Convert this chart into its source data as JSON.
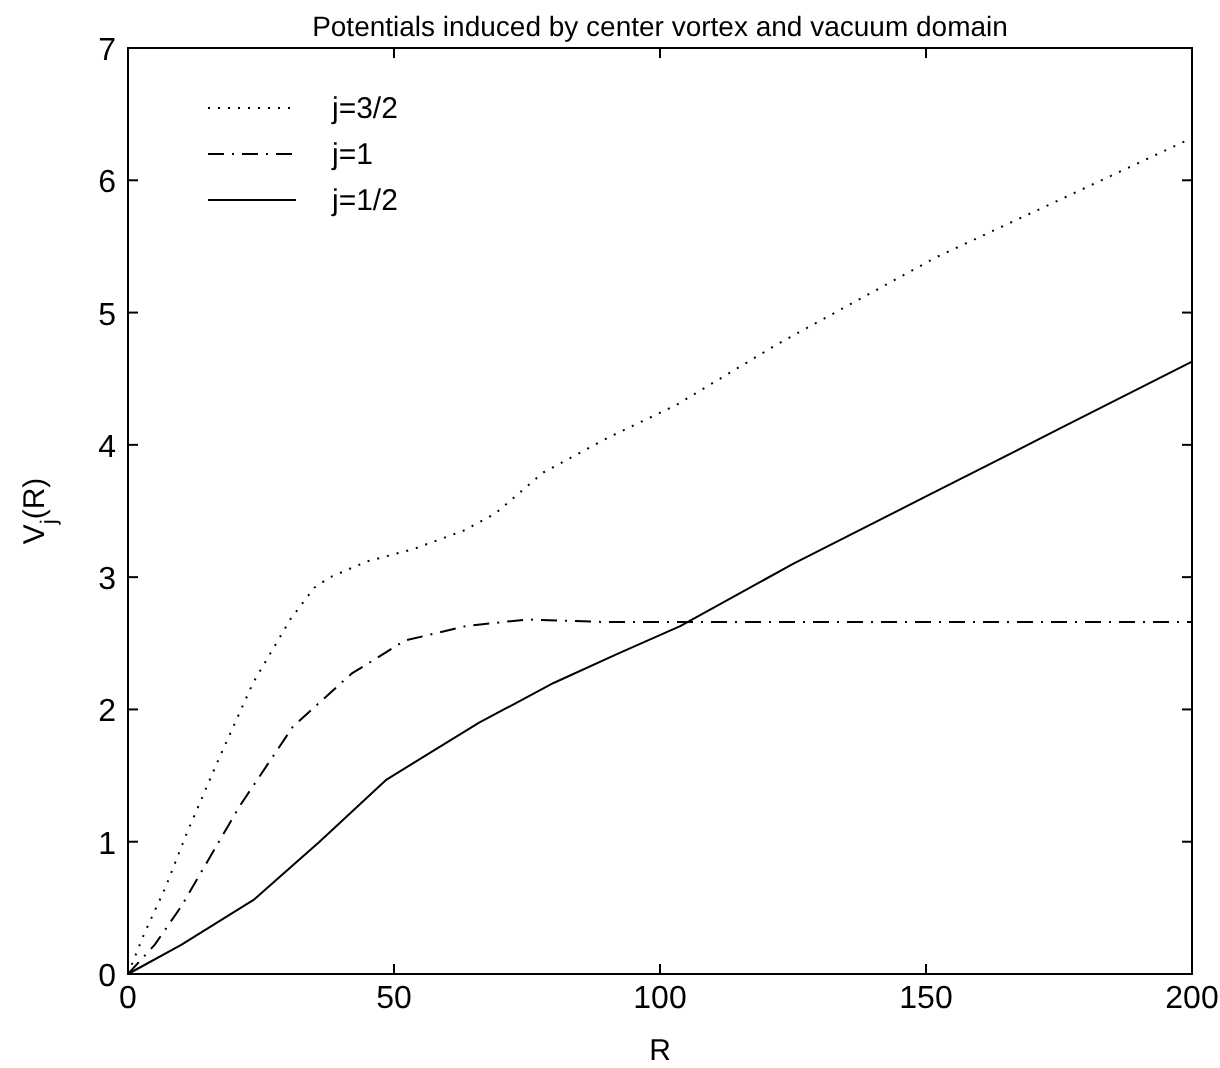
{
  "chart_data": {
    "type": "line",
    "title": "Potentials induced by center vortex and vacuum domain",
    "xlabel": "R",
    "ylabel": "V$_{j}$(R)",
    "xlim": [
      0,
      200
    ],
    "ylim": [
      0,
      7
    ],
    "xticks": [
      0,
      50,
      100,
      150,
      200
    ],
    "yticks": [
      0,
      1,
      2,
      3,
      4,
      5,
      6,
      7
    ],
    "grid": false,
    "legend": "top left",
    "series": [
      {
        "name": "j=3/2",
        "color": "#000000",
        "line_style": "dotted",
        "x": [
          0,
          3,
          7,
          11,
          17,
          23.5,
          30.5,
          35,
          38,
          45,
          53.5,
          63,
          69,
          78,
          90,
          103,
          122,
          152,
          175,
          200
        ],
        "values": [
          0,
          0.3,
          0.65,
          1.06,
          1.62,
          2.2,
          2.68,
          2.92,
          3.0,
          3.12,
          3.21,
          3.35,
          3.48,
          3.79,
          4.05,
          4.3,
          4.76,
          5.42,
          5.85,
          6.32
        ]
      },
      {
        "name": "j=1",
        "color": "#000000",
        "line_style": "dashdot",
        "x": [
          0,
          5,
          10,
          21,
          31,
          42,
          52,
          63.5,
          75,
          90,
          120,
          160,
          200
        ],
        "values": [
          0,
          0.22,
          0.51,
          1.27,
          1.87,
          2.27,
          2.52,
          2.63,
          2.68,
          2.66,
          2.66,
          2.66,
          2.66
        ]
      },
      {
        "name": "j=1/2",
        "color": "#000000",
        "line_style": "solid",
        "x": [
          0,
          10,
          23.6,
          36,
          48.6,
          66,
          80,
          92,
          103.8,
          125,
          150,
          175,
          200
        ],
        "values": [
          0,
          0.22,
          0.56,
          1.0,
          1.47,
          1.9,
          2.2,
          2.42,
          2.63,
          3.1,
          3.61,
          4.12,
          4.63
        ]
      }
    ]
  }
}
